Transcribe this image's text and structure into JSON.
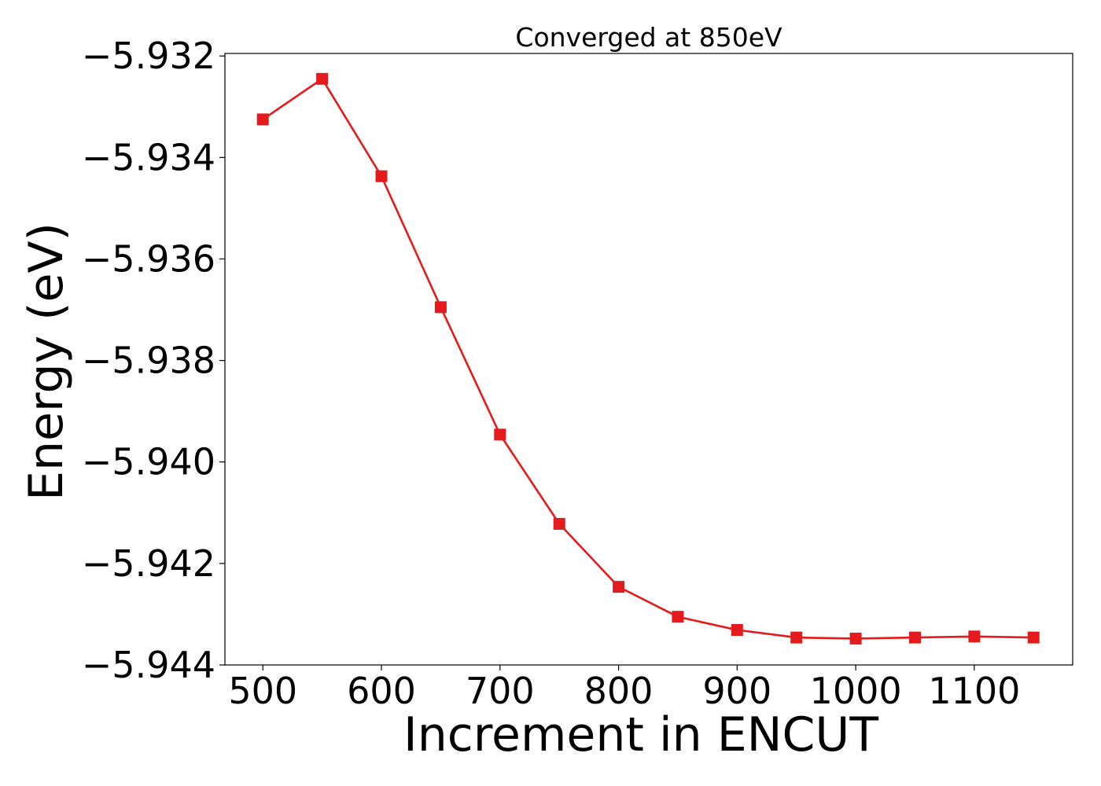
{
  "chart_data": {
    "type": "line",
    "title": "Converged at 850eV",
    "xlabel": "Increment in ENCUT",
    "ylabel": "Energy (eV)",
    "x": [
      500,
      550,
      600,
      650,
      700,
      750,
      800,
      850,
      900,
      950,
      1000,
      1050,
      1100,
      1150
    ],
    "series": [
      {
        "values": [
          -5.93325,
          -5.93245,
          -5.93437,
          -5.93695,
          -5.93946,
          -5.94122,
          -5.94246,
          -5.94305,
          -5.94331,
          -5.94346,
          -5.94348,
          -5.94346,
          -5.94344,
          -5.94346
        ],
        "color": "#e41a1c",
        "marker": "square"
      }
    ],
    "xlim": [
      468,
      1183
    ],
    "ylim": [
      -5.944,
      -5.93195
    ],
    "xticks": [
      500,
      600,
      700,
      800,
      900,
      1000,
      1100
    ],
    "xtick_labels": [
      "500",
      "600",
      "700",
      "800",
      "900",
      "1000",
      "1100"
    ],
    "yticks": [
      -5.932,
      -5.934,
      -5.936,
      -5.938,
      -5.94,
      -5.942,
      -5.944
    ],
    "ytick_labels": [
      "−5.932",
      "−5.934",
      "−5.936",
      "−5.938",
      "−5.940",
      "−5.942",
      "−5.944"
    ],
    "grid": false,
    "legend": "none"
  }
}
